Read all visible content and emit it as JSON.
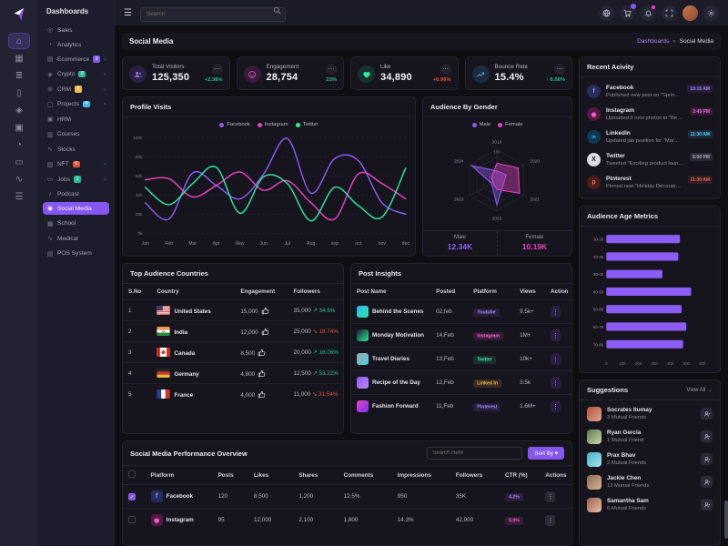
{
  "sidebar": {
    "title": "Dashboards",
    "items": [
      {
        "label": "Sales",
        "icon": "sales-icon",
        "glyph": "◎"
      },
      {
        "label": "Analytics",
        "icon": "analytics-icon",
        "glyph": "◔"
      },
      {
        "label": "Ecommerce",
        "icon": "ecommerce-icon",
        "glyph": "▤",
        "badge": "9",
        "badge_color": "#7b5cf0",
        "chevron": true
      },
      {
        "label": "Crypto",
        "icon": "crypto-icon",
        "glyph": "◈",
        "badge": "6",
        "badge_color": "#26bf94",
        "chevron": true
      },
      {
        "label": "CRM",
        "icon": "crm-icon",
        "glyph": "⊚",
        "badge": "5",
        "badge_color": "#f5b849",
        "chevron": true
      },
      {
        "label": "Projects",
        "icon": "projects-icon",
        "glyph": "▢",
        "badge": "4",
        "badge_color": "#49b6f5",
        "chevron": true
      },
      {
        "label": "HRM",
        "icon": "hrm-icon",
        "glyph": "▣"
      },
      {
        "label": "Courses",
        "icon": "courses-icon",
        "glyph": "▥"
      },
      {
        "label": "Stocks",
        "icon": "stocks-icon",
        "glyph": "∿"
      },
      {
        "label": "NFT",
        "icon": "nft-icon",
        "glyph": "▧",
        "badge": "6",
        "badge_color": "#e6533c",
        "chevron": true
      },
      {
        "label": "Jobs",
        "icon": "jobs-icon",
        "glyph": "▭",
        "badge": "1",
        "badge_color": "#26bf94",
        "chevron": true
      },
      {
        "label": "Podcast",
        "icon": "podcast-icon",
        "glyph": "♪"
      },
      {
        "label": "Social Media",
        "icon": "social-media-icon",
        "glyph": "◉",
        "active": true
      },
      {
        "label": "School",
        "icon": "school-icon",
        "glyph": "▦"
      },
      {
        "label": "Medical",
        "icon": "medical-icon",
        "glyph": "∿"
      },
      {
        "label": "POS System",
        "icon": "pos-icon",
        "glyph": "▤"
      }
    ]
  },
  "topbar": {
    "search_placeholder": "Search",
    "icons": [
      "globe-icon",
      "cart-icon",
      "bell-icon",
      "fullscreen-icon",
      "avatar",
      "gear-icon"
    ],
    "cart_badge_color": "#8457f0",
    "bell_dot_color": "#e843c4"
  },
  "page_header": {
    "title": "Social Media",
    "breadcrumb": {
      "parent": "Dashboards",
      "separator": "»",
      "current": "Social Media"
    }
  },
  "stats": [
    {
      "label": "Total Visitors",
      "value": "125,350",
      "delta": "+2.38%",
      "delta_color": "#26bf94",
      "icon": "visitors-icon",
      "icon_bg": "rgba(132,87,240,.18)",
      "icon_color": "#9d7bf5"
    },
    {
      "label": "Engagement",
      "value": "28,754",
      "delta": "23%",
      "delta_color": "#26bf94",
      "icon": "engagement-icon",
      "icon_bg": "rgba(232,67,196,.16)",
      "icon_color": "#e858c9"
    },
    {
      "label": "Like",
      "value": "34,890",
      "delta": "+0.96%",
      "delta_color": "#e6533c",
      "icon": "like-icon",
      "icon_bg": "rgba(46,232,165,.14)",
      "icon_color": "#2ee8a5"
    },
    {
      "label": "Bounce Rate",
      "value": "15.4%",
      "delta": "↑ 6.06%",
      "delta_color": "#26bf94",
      "icon": "bounce-icon",
      "icon_bg": "rgba(73,182,245,.15)",
      "icon_color": "#49b6f5"
    }
  ],
  "chart_data": [
    {
      "id": "profile_visits",
      "type": "line",
      "title": "Profile Visits",
      "x": [
        "Jan",
        "Feb",
        "Mar",
        "Apr",
        "May",
        "Jun",
        "Jul",
        "Aug",
        "sep",
        "oct",
        "nov",
        "dec"
      ],
      "ylim": [
        0,
        100
      ],
      "yticks": [
        0,
        20,
        40,
        60,
        80,
        100
      ],
      "ytick_suffix": "k",
      "grid": true,
      "legend_position": "top",
      "series": [
        {
          "name": "Facebook",
          "color": "#8b5cf6",
          "values": [
            32,
            15,
            63,
            50,
            36,
            62,
            99,
            42,
            78,
            76,
            32,
            20
          ]
        },
        {
          "name": "Instagram",
          "color": "#e843c4",
          "values": [
            56,
            57,
            38,
            50,
            64,
            45,
            55,
            32,
            15,
            62,
            52,
            36
          ]
        },
        {
          "name": "Twitter",
          "color": "#2ee8a5",
          "values": [
            48,
            30,
            52,
            69,
            21,
            59,
            52,
            13,
            48,
            29,
            17,
            68
          ]
        }
      ]
    },
    {
      "id": "audience_gender",
      "type": "radar",
      "title": "Audience By Gender",
      "axes": [
        "2019",
        "2020",
        "2021",
        "2022",
        "2023",
        "2024"
      ],
      "rlim": [
        0,
        100
      ],
      "rtick_labels": [
        "0",
        "100"
      ],
      "series": [
        {
          "name": "Male",
          "color": "#8b5cf6",
          "values": [
            30,
            35,
            25,
            80,
            20,
            95
          ],
          "total": "12.34K"
        },
        {
          "name": "Female",
          "color": "#e843c4",
          "values": [
            55,
            80,
            85,
            30,
            15,
            20
          ],
          "total": "10.19K"
        }
      ]
    },
    {
      "id": "audience_age",
      "type": "bar",
      "orientation": "horizontal",
      "title": "Audience Age Metrics",
      "categories": [
        "10-20",
        "20-30",
        "30-40",
        "40-50",
        "50-60",
        "60-70",
        "70-80"
      ],
      "values": [
        460,
        450,
        350,
        530,
        470,
        500,
        480
      ],
      "color": "#8b5cf6",
      "xlim": [
        0,
        600
      ],
      "xticks": [
        0,
        100,
        200,
        300,
        400,
        500,
        600
      ],
      "grid": false
    }
  ],
  "recent_activity": {
    "title": "Recent Acivity",
    "items": [
      {
        "network": "Facebook",
        "icon": "facebook-icon",
        "glyph": "f",
        "icon_bg": "#2b2a5e",
        "icon_color": "#8b9df5",
        "text": "Published new post on \"Spring Sale...",
        "time": "10:15 AM",
        "time_color": "#a78bfa",
        "time_bg": "rgba(132,87,240,.15)"
      },
      {
        "network": "Instagram",
        "icon": "instagram-icon",
        "glyph": "◉",
        "icon_bg": "#55183f",
        "icon_color": "#f06ad8",
        "text": "Uploaded 3 new photos to \"Beach Vacatio...",
        "time": "3:45 PM",
        "time_color": "#f06ad8",
        "time_bg": "rgba(232,67,196,.15)"
      },
      {
        "network": "LinkedIn",
        "icon": "linkedin-icon",
        "glyph": "in",
        "icon_bg": "#0d3a52",
        "icon_color": "#49b6f5",
        "text": "Updated job position for \"Marketing...",
        "time": "11:30 AM",
        "time_color": "#49d6f5",
        "time_bg": "rgba(73,182,245,.15)"
      },
      {
        "network": "Twitter",
        "icon": "twitter-icon",
        "glyph": "X",
        "icon_bg": "#dcdbe4",
        "icon_color": "#15141c",
        "text": "Tweeted \"Exciting product launch...",
        "time": "6:00 PM",
        "time_color": "#b5b4c0",
        "time_bg": "#2a2935"
      },
      {
        "network": "Pinterest",
        "icon": "pinterest-icon",
        "glyph": "p",
        "icon_bg": "#4a1d18",
        "icon_color": "#ee675c",
        "text": "Pinned new \"Holiday Decoration Ideas\"...",
        "time": "11:30 AM",
        "time_color": "#ee675c",
        "time_bg": "rgba(230,83,60,.15)"
      }
    ]
  },
  "suggestions": {
    "title": "Suggestions",
    "view_all": "View All →",
    "items": [
      {
        "name": "Socrates Itumay",
        "friends": "3 Mutual Friends",
        "avatar_colors": [
          "#b0543b",
          "#e2a38d"
        ]
      },
      {
        "name": "Ryan Gercia",
        "friends": "1 Mutual Friend",
        "avatar_colors": [
          "#5e7d4f",
          "#c9d6a3"
        ]
      },
      {
        "name": "Prax Bhav",
        "friends": "2 Mutual Friends",
        "avatar_colors": [
          "#3fb5c9",
          "#a5e3ee"
        ]
      },
      {
        "name": "Jackie Chen",
        "friends": "12 Mutual Friends",
        "avatar_colors": [
          "#8a6a52",
          "#d9b79a"
        ]
      },
      {
        "name": "Samantha Sam",
        "friends": "6 Mutual Friends",
        "avatar_colors": [
          "#a05a4a",
          "#e7c1a8"
        ]
      }
    ]
  },
  "countries_table": {
    "title": "Top Audience Countries",
    "columns": [
      "S.No",
      "Country",
      "Engagement",
      "Followers"
    ],
    "rows": [
      {
        "sno": "1",
        "country": "United States",
        "flag": "us",
        "engagement": "15,000",
        "followers": "35,000",
        "trend": "up",
        "trend_pct": "34.6%"
      },
      {
        "sno": "2",
        "country": "India",
        "flag": "in",
        "engagement": "12,000",
        "followers": "25,000",
        "trend": "down",
        "trend_pct": "18.74%"
      },
      {
        "sno": "3",
        "country": "Canada",
        "flag": "ca",
        "engagement": "8,500",
        "followers": "20,000",
        "trend": "up",
        "trend_pct": "16.06%"
      },
      {
        "sno": "4",
        "country": "Germany",
        "flag": "de",
        "engagement": "4,800",
        "followers": "12,500",
        "trend": "up",
        "trend_pct": "53.22%"
      },
      {
        "sno": "5",
        "country": "France",
        "flag": "fr",
        "engagement": "4,000",
        "followers": "11,000",
        "trend": "down",
        "trend_pct": "31.54%"
      }
    ]
  },
  "posts_table": {
    "title": "Post Insights",
    "columns": [
      "Post Name",
      "Posted",
      "Platform",
      "Views",
      "Action"
    ],
    "rows": [
      {
        "name": "Behind the Scenes",
        "thumb_colors": [
          "#29b6f6",
          "#2ee8a5"
        ],
        "posted": "02,feb",
        "platform": "Youtube",
        "platform_color": "#a78bfa",
        "platform_bg": "rgba(139,92,246,.15)",
        "views": "9.5k+"
      },
      {
        "name": "Monday Motivation",
        "thumb_colors": [
          "#141a28",
          "#2ee8a5"
        ],
        "posted": "14,Feb",
        "platform": "Instagram",
        "platform_color": "#f06ad8",
        "platform_bg": "rgba(232,67,196,.15)",
        "views": "1M+"
      },
      {
        "name": "Travel Diaries",
        "thumb_colors": [
          "#9aa7b5",
          "#4dd0e1"
        ],
        "posted": "13,Feb",
        "platform": "Twitter",
        "platform_color": "#3ce9ad",
        "platform_bg": "rgba(46,232,165,.12)",
        "views": "10k+"
      },
      {
        "name": "Recipe of the Day",
        "thumb_colors": [
          "#8b5cf6",
          "#c084fc"
        ],
        "posted": "12,Feb",
        "platform": "Linked In",
        "platform_color": "#f5b849",
        "platform_bg": "rgba(245,184,73,.15)",
        "views": "3.5k"
      },
      {
        "name": "Fashion Forward",
        "thumb_colors": [
          "#e843c4",
          "#7b2ff7"
        ],
        "posted": "11,Feb",
        "platform": "Pinterest",
        "platform_color": "#a78bfa",
        "platform_bg": "rgba(139,92,246,.15)",
        "views": "1.6M+"
      }
    ]
  },
  "performance_table": {
    "title": "Social Media Performance Overview",
    "search_placeholder": "Search Here",
    "sort_button": "Sort By",
    "sort_caret": "▾",
    "columns": [
      "Platform",
      "Posts",
      "Likes",
      "Shares",
      "Comments",
      "Impressions",
      "Followers",
      "CTR (%)",
      "Actions"
    ],
    "rows": [
      {
        "platform": "Facebook",
        "icon": "facebook-icon",
        "glyph": "f",
        "icon_bg": "#2b2a5e",
        "icon_color": "#8b9df5",
        "checked": true,
        "posts": "120",
        "likes": "8,500",
        "shares": "1,200",
        "comments": "12.5%",
        "impressions": "950",
        "followers": "35K",
        "ctr": "4.2%",
        "ctr_color": "#a78bfa",
        "ctr_bg": "rgba(139,92,246,.15)"
      },
      {
        "platform": "Instagram",
        "icon": "instagram-icon",
        "glyph": "◉",
        "icon_bg": "#55183f",
        "icon_color": "#f06ad8",
        "checked": false,
        "posts": "95",
        "likes": "12,000",
        "shares": "2,100",
        "comments": "1,800",
        "impressions": "14.3%",
        "followers": "42,000",
        "ctr": "5.0%",
        "ctr_color": "#f06ad8",
        "ctr_bg": "rgba(232,67,196,.15)"
      }
    ]
  }
}
